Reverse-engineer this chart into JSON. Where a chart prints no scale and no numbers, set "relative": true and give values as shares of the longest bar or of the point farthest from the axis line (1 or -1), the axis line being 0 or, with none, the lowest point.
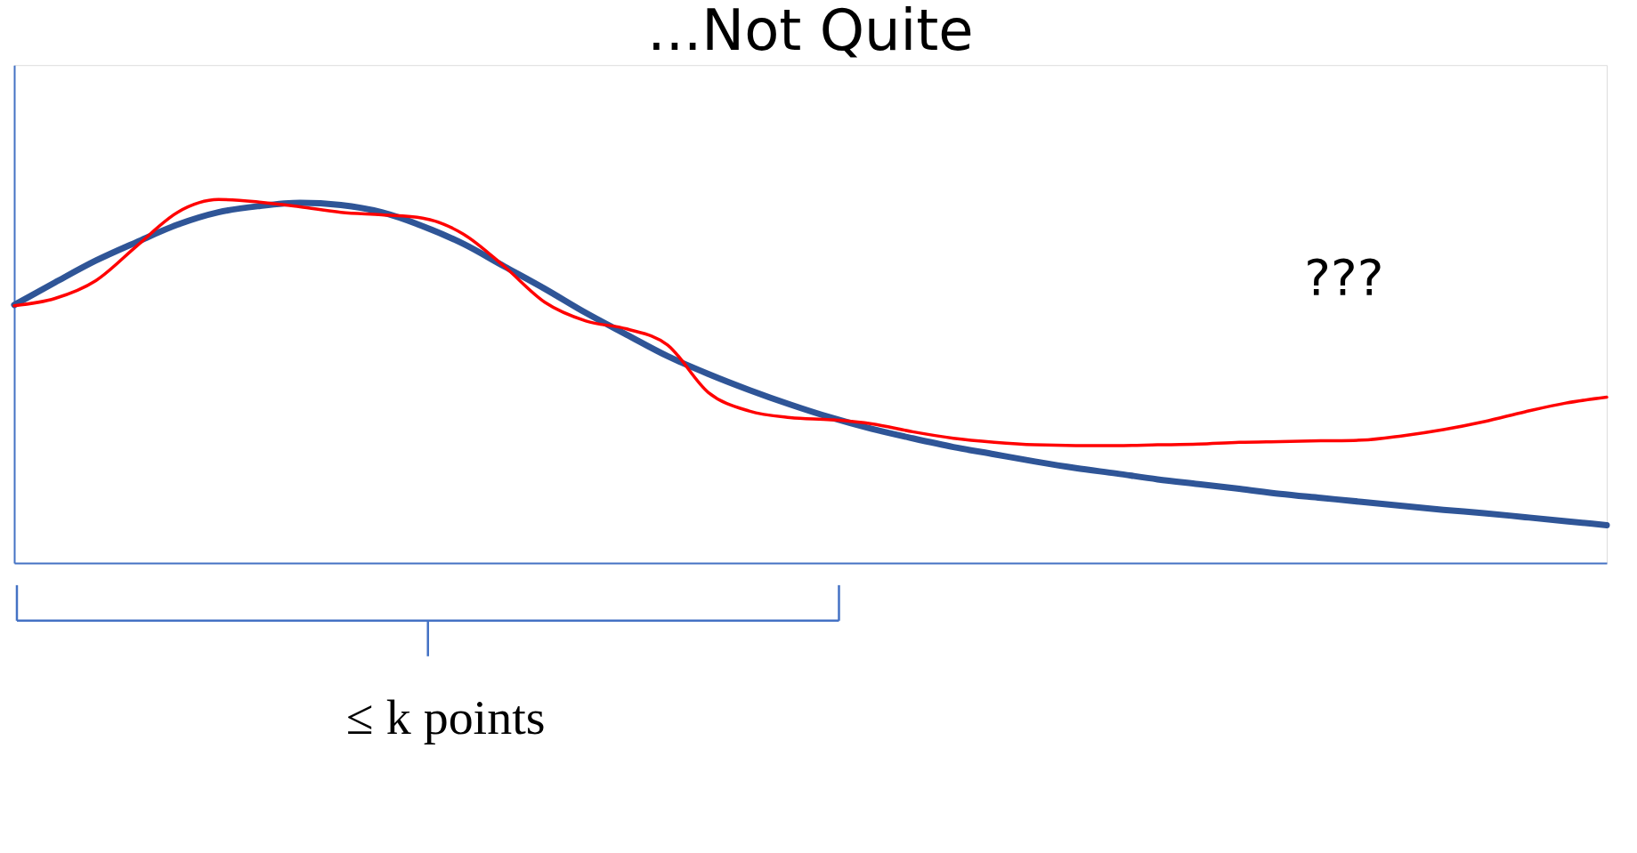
{
  "chart_data": {
    "type": "line",
    "title": "...Not Quite",
    "relative": true,
    "line_style": "solid",
    "categories": [
      null,
      null,
      null,
      null,
      null,
      null,
      null,
      null,
      null,
      null,
      null,
      null,
      null,
      null,
      null,
      null,
      null,
      null,
      null,
      null,
      null,
      null,
      null,
      null,
      null,
      null,
      null,
      null,
      null,
      null,
      null,
      null,
      null,
      null,
      null,
      null,
      null,
      null,
      null,
      null
    ],
    "series": [
      {
        "color": "#2f5597",
        "values": [
          0.71,
          0.772,
          0.832,
          0.883,
          0.931,
          0.965,
          0.982,
          0.991,
          0.985,
          0.965,
          0.927,
          0.878,
          0.816,
          0.754,
          0.688,
          0.628,
          0.569,
          0.52,
          0.476,
          0.436,
          0.4,
          0.369,
          0.343,
          0.319,
          0.299,
          0.279,
          0.261,
          0.246,
          0.23,
          0.217,
          0.204,
          0.19,
          0.179,
          0.168,
          0.157,
          0.146,
          0.137,
          0.126,
          0.115,
          0.104
        ]
      },
      {
        "color": "#ff0000",
        "values": [
          0.708,
          0.728,
          0.777,
          0.872,
          0.965,
          1.0,
          0.993,
          0.98,
          0.965,
          0.958,
          0.949,
          0.905,
          0.816,
          0.717,
          0.666,
          0.644,
          0.6,
          0.469,
          0.418,
          0.4,
          0.394,
          0.383,
          0.361,
          0.343,
          0.332,
          0.325,
          0.323,
          0.323,
          0.325,
          0.327,
          0.332,
          0.334,
          0.336,
          0.338,
          0.35,
          0.367,
          0.389,
          0.416,
          0.44,
          0.456
        ]
      }
    ],
    "annotations": [
      "???",
      "≤ k points"
    ]
  }
}
